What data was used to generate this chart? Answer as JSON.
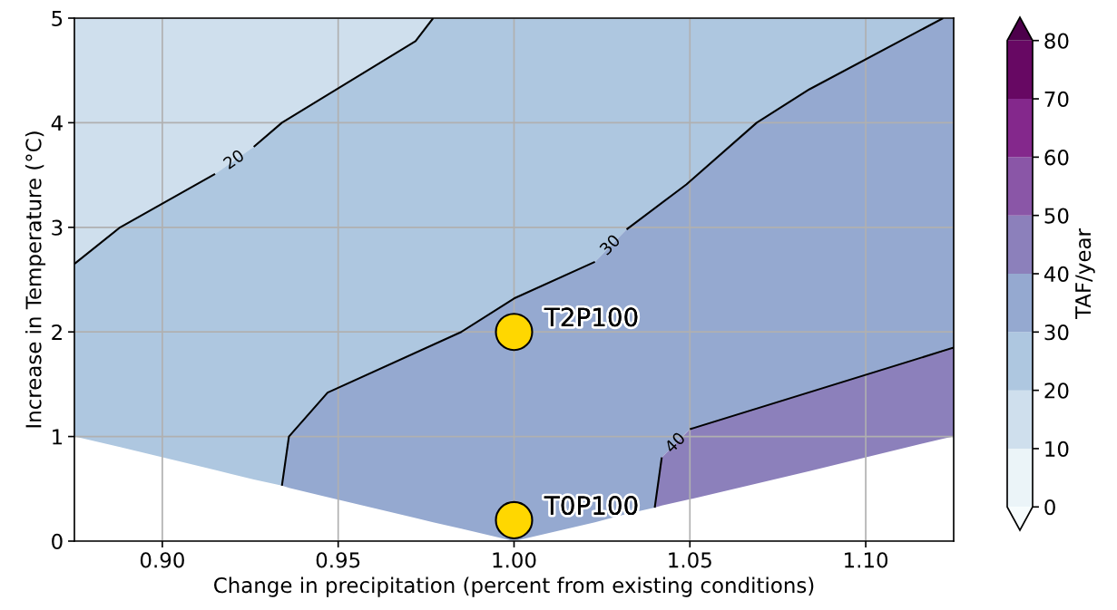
{
  "chart_data": {
    "type": "line",
    "xlabel": "Change in precipitation (percent from existing conditions)",
    "ylabel": "Increase in Temperature (°C)",
    "clabel": "TAF/year",
    "xlim": [
      0.875,
      1.125
    ],
    "xticks": [
      {
        "value": 0.9,
        "label": "0.90"
      },
      {
        "value": 0.95,
        "label": "0.95"
      },
      {
        "value": 1.0,
        "label": "1.00"
      },
      {
        "value": 1.05,
        "label": "1.05"
      },
      {
        "value": 1.1,
        "label": "1.10"
      }
    ],
    "ylim": [
      0,
      5
    ],
    "yticks": [
      0,
      1,
      2,
      3,
      4,
      5
    ],
    "clim": [
      0,
      80
    ],
    "cticks": [
      0,
      10,
      20,
      30,
      40,
      50,
      60,
      70,
      80
    ],
    "colors": [
      "#f7fcfd",
      "#ebf4f8",
      "#cfdfed",
      "#aec7e0",
      "#95a9d0",
      "#8c80bb",
      "#8a56a7",
      "#84288c",
      "#670863",
      "#4d004b"
    ],
    "grid": true,
    "series": [
      {
        "color": "#cfdfed",
        "x": [
          0.875,
          0.888,
          0.915,
          0.926,
          0.934,
          0.972,
          0.977
        ],
        "values": [
          null,
          null,
          null,
          null,
          null,
          null,
          null
        ],
        "lower": [
          2.65,
          3.0,
          3.51,
          3.77,
          4.0,
          4.78,
          5.0
        ],
        "upper": [
          5,
          5,
          5,
          5,
          5,
          5,
          5
        ]
      },
      {
        "color": "#aec7e0",
        "x": [
          0.875,
          0.888,
          0.915,
          0.926,
          0.934,
          0.936,
          0.947,
          0.972,
          0.977,
          0.985,
          1.0,
          1.023,
          1.032,
          1.049,
          1.069,
          1.084,
          1.122
        ],
        "values": [
          null,
          null,
          null,
          null,
          null,
          null,
          null,
          null,
          null,
          null,
          null,
          null,
          null,
          null,
          null,
          null,
          null
        ],
        "lower": [
          1.0,
          0.9,
          0.68,
          0.59,
          0.53,
          1.0,
          1.42,
          1.81,
          1.89,
          2.0,
          2.32,
          2.67,
          2.98,
          3.41,
          4.0,
          4.32,
          5.0
        ],
        "upper": [
          2.65,
          3.0,
          3.51,
          3.77,
          4.0,
          4.04,
          4.26,
          4.78,
          5.0,
          5.0,
          5.0,
          5.0,
          5.0,
          5.0,
          5.0,
          5.0,
          5.0
        ]
      },
      {
        "color": "#95a9d0",
        "x": [
          0.934,
          0.936,
          0.947,
          0.972,
          0.977,
          0.985,
          1.0,
          1.023,
          1.032,
          1.04,
          1.042,
          1.049,
          1.05,
          1.069,
          1.084,
          1.122,
          1.125
        ],
        "values": [
          null,
          null,
          null,
          null,
          null,
          null,
          null,
          null,
          null,
          null,
          null,
          null,
          null,
          null,
          null,
          null,
          null
        ],
        "lower": [
          0.53,
          0.51,
          0.42,
          0.22,
          0.18,
          0.12,
          0.0,
          0.18,
          0.26,
          0.32,
          0.8,
          1.04,
          1.07,
          1.27,
          1.43,
          1.81,
          1.85
        ],
        "upper": [
          0.53,
          1.0,
          1.42,
          1.81,
          1.89,
          2.0,
          2.32,
          2.67,
          2.98,
          3.19,
          3.25,
          3.41,
          3.43,
          4.0,
          4.32,
          5.0,
          5.0
        ]
      },
      {
        "color": "#8c80bb",
        "x": [
          1.04,
          1.042,
          1.05,
          1.069,
          1.084,
          1.122,
          1.125
        ],
        "values": [
          null,
          null,
          null,
          null,
          null,
          null,
          null
        ],
        "lower": [
          0.32,
          0.34,
          0.4,
          0.55,
          0.67,
          0.98,
          1.0
        ],
        "upper": [
          0.32,
          0.8,
          1.07,
          1.27,
          1.43,
          1.81,
          1.85
        ]
      },
      {
        "color": "#000000",
        "x": [
          0.875,
          0.888,
          0.915,
          0.919,
          0.926,
          0.934,
          0.972,
          0.977
        ],
        "values": [
          2.65,
          3.0,
          3.51,
          null,
          3.77,
          4.0,
          4.78,
          5.0
        ]
      },
      {
        "color": "#000000",
        "x": [
          0.934,
          0.936,
          0.947,
          0.985,
          1.0,
          1.023,
          1.027,
          1.032,
          1.049,
          1.069,
          1.084,
          1.122
        ],
        "values": [
          0.53,
          1.0,
          1.42,
          2.0,
          2.32,
          2.67,
          null,
          2.98,
          3.41,
          4.0,
          4.32,
          5.0
        ]
      },
      {
        "color": "#000000",
        "x": [
          1.04,
          1.042,
          1.043,
          1.05,
          1.125
        ],
        "values": [
          0.32,
          0.8,
          null,
          1.07,
          1.85
        ]
      },
      {
        "type": "scatter",
        "color": "#ffd700",
        "marker": "circle",
        "x": [
          1.0,
          1.0
        ],
        "values": [
          2.0,
          0.2
        ]
      }
    ],
    "annotations": [
      "20",
      "30",
      "40",
      {
        "text": "T2P100",
        "x": 1.0,
        "y": 2.0
      },
      {
        "text": "T0P100",
        "x": 1.0,
        "y": 0.2
      }
    ]
  }
}
